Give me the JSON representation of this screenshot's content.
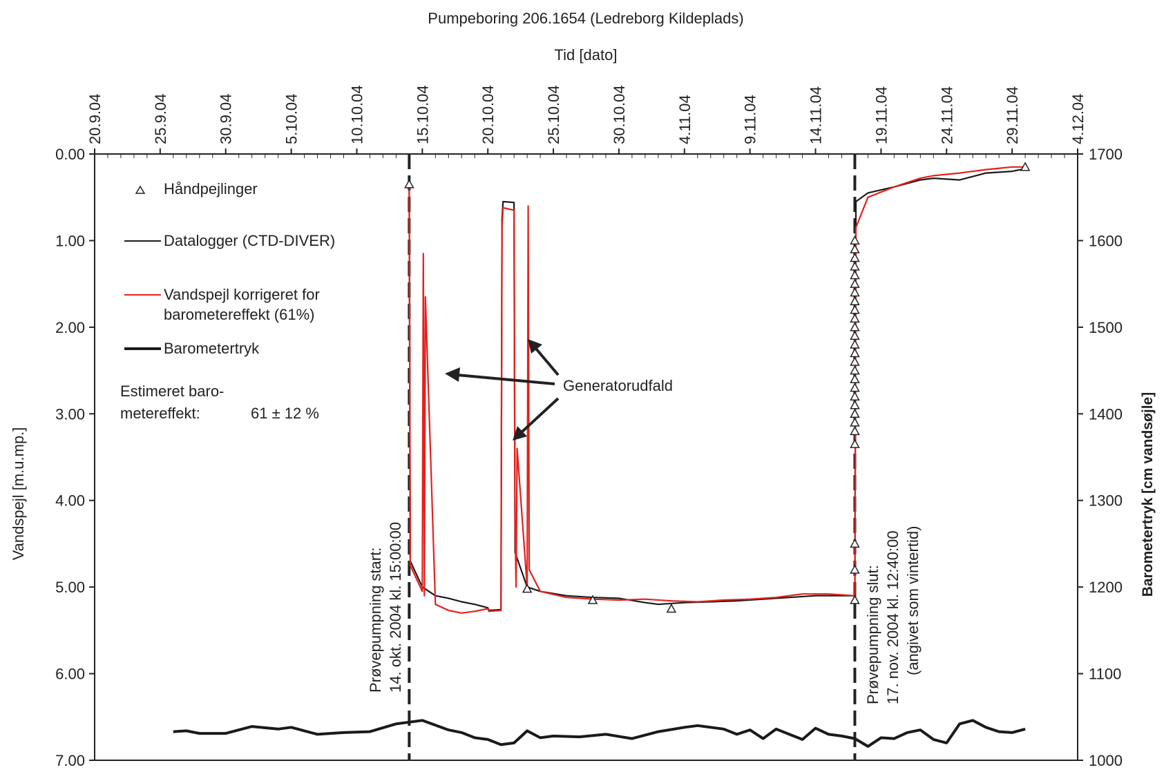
{
  "chart_data": {
    "type": "line",
    "title": "Pumpeboring 206.1654 (Ledreborg Kildeplads)",
    "x_axis": {
      "label": "Tid [dato]",
      "position": "top",
      "tick_labels": [
        "20.9.04",
        "25.9.04",
        "30.9.04",
        "5.10.04",
        "10.10.04",
        "15.10.04",
        "20.10.04",
        "25.10.04",
        "30.10.04",
        "4.11.04",
        "9.11.04",
        "14.11.04",
        "19.11.04",
        "24.11.04",
        "29.11.04",
        "4.12.04"
      ],
      "range": [
        "2004-09-20",
        "2004-12-04"
      ]
    },
    "y_axis_left": {
      "label": "Vandspejl [m.u.mp.]",
      "tick_labels": [
        "0.00",
        "1.00",
        "2.00",
        "3.00",
        "4.00",
        "5.00",
        "6.00",
        "7.00"
      ],
      "range": [
        0,
        7
      ],
      "inverted": true
    },
    "y_axis_right": {
      "label": "Barometertryk [cm vandsøjle]",
      "tick_labels": [
        "1700",
        "1600",
        "1500",
        "1400",
        "1300",
        "1200",
        "1100",
        "1000"
      ],
      "range": [
        1000,
        1700
      ]
    },
    "legend": [
      {
        "label": "Håndpejlinger",
        "marker": "triangle"
      },
      {
        "label": "Datalogger (CTD-DIVER)",
        "line": "thin-black"
      },
      {
        "label_lines": [
          "Vandspejl korrigeret for",
          "barometereffekt (61%)"
        ],
        "line": "thin-red"
      },
      {
        "label": "Barometertryk",
        "line": "thick-black"
      }
    ],
    "annotations": {
      "estimate_label_1": "Estimeret baro-",
      "estimate_label_2": "metereffekt:",
      "estimate_value": "61 ± 12 %",
      "generator_label": "Generatorudfald",
      "start_line_1": "Prøvepumpning start:",
      "start_line_2": "14. okt. 2004 kl. 15:00:00",
      "stop_line_1": "Prøvepumpning slut:",
      "stop_line_2": "17. nov. 2004 kl. 12:40:00",
      "stop_line_3": "(angivet som vintertid)"
    },
    "events": {
      "pump_start": "2004-10-14",
      "pump_stop": "2004-11-17"
    },
    "series": [
      {
        "name": "Datalogger (CTD-DIVER)",
        "axis": "left",
        "color": "#1a1a1a",
        "points": [
          [
            "2004-10-14",
            0.38
          ],
          [
            "2004-10-14",
            4.7
          ],
          [
            "2004-10-15",
            5.0
          ],
          [
            "2004-10-16",
            5.1
          ],
          [
            "2004-10-17",
            5.13
          ],
          [
            "2004-10-18",
            5.17
          ],
          [
            "2004-10-19",
            5.2
          ],
          [
            "2004-10-20",
            5.24
          ],
          [
            "2004-10-20",
            5.27
          ],
          [
            "2004-10-21",
            5.26
          ],
          [
            "2004-10-21",
            0.75
          ],
          [
            "2004-10-21",
            0.55
          ],
          [
            "2004-10-22",
            0.56
          ],
          [
            "2004-10-22",
            4.6
          ],
          [
            "2004-10-23",
            5.0
          ],
          [
            "2004-10-24",
            5.05
          ],
          [
            "2004-10-26",
            5.1
          ],
          [
            "2004-10-28",
            5.12
          ],
          [
            "2004-10-30",
            5.13
          ],
          [
            "2004-11-01",
            5.18
          ],
          [
            "2004-11-02",
            5.2
          ],
          [
            "2004-11-04",
            5.18
          ],
          [
            "2004-11-06",
            5.17
          ],
          [
            "2004-11-08",
            5.16
          ],
          [
            "2004-11-10",
            5.14
          ],
          [
            "2004-11-12",
            5.12
          ],
          [
            "2004-11-14",
            5.1
          ],
          [
            "2004-11-16",
            5.1
          ],
          [
            "2004-11-17",
            5.1
          ],
          [
            "2004-11-17",
            0.55
          ],
          [
            "2004-11-18",
            0.45
          ],
          [
            "2004-11-20",
            0.38
          ],
          [
            "2004-11-22",
            0.3
          ],
          [
            "2004-11-23",
            0.28
          ],
          [
            "2004-11-25",
            0.3
          ],
          [
            "2004-11-27",
            0.22
          ],
          [
            "2004-11-29",
            0.2
          ],
          [
            "2004-11-30",
            0.17
          ]
        ]
      },
      {
        "name": "Vandspejl korrigeret for barometereffekt (61%)",
        "axis": "left",
        "color": "#e4201c",
        "points": [
          [
            "2004-10-14",
            0.4
          ],
          [
            "2004-10-14",
            4.75
          ],
          [
            "2004-10-15",
            5.05
          ],
          [
            "2004-10-15",
            1.15
          ],
          [
            "2004-10-15",
            5.1
          ],
          [
            "2004-10-15",
            1.65
          ],
          [
            "2004-10-16",
            5.2
          ],
          [
            "2004-10-17",
            5.27
          ],
          [
            "2004-10-18",
            5.3
          ],
          [
            "2004-10-19",
            5.28
          ],
          [
            "2004-10-20",
            5.25
          ],
          [
            "2004-10-20",
            5.28
          ],
          [
            "2004-10-21",
            5.27
          ],
          [
            "2004-10-21",
            0.85
          ],
          [
            "2004-10-21",
            0.62
          ],
          [
            "2004-10-22",
            0.65
          ],
          [
            "2004-10-22",
            4.3
          ],
          [
            "2004-10-22",
            5.0
          ],
          [
            "2004-10-22",
            3.4
          ],
          [
            "2004-10-23",
            5.0
          ],
          [
            "2004-10-23",
            0.6
          ],
          [
            "2004-10-23",
            4.8
          ],
          [
            "2004-10-24",
            5.05
          ],
          [
            "2004-10-26",
            5.12
          ],
          [
            "2004-10-28",
            5.14
          ],
          [
            "2004-10-30",
            5.15
          ],
          [
            "2004-11-01",
            5.14
          ],
          [
            "2004-11-03",
            5.16
          ],
          [
            "2004-11-05",
            5.17
          ],
          [
            "2004-11-07",
            5.15
          ],
          [
            "2004-11-09",
            5.14
          ],
          [
            "2004-11-11",
            5.12
          ],
          [
            "2004-11-13",
            5.08
          ],
          [
            "2004-11-15",
            5.08
          ],
          [
            "2004-11-17",
            5.1
          ],
          [
            "2004-11-17",
            0.85
          ],
          [
            "2004-11-18",
            0.5
          ],
          [
            "2004-11-20",
            0.38
          ],
          [
            "2004-11-22",
            0.28
          ],
          [
            "2004-11-23",
            0.25
          ],
          [
            "2004-11-25",
            0.22
          ],
          [
            "2004-11-27",
            0.18
          ],
          [
            "2004-11-29",
            0.15
          ],
          [
            "2004-11-30",
            0.15
          ]
        ]
      },
      {
        "name": "Barometertryk",
        "axis": "right",
        "color": "#1a1a1a",
        "points": [
          [
            "2004-09-26",
            1033
          ],
          [
            "2004-09-27",
            1034
          ],
          [
            "2004-09-28",
            1031
          ],
          [
            "2004-09-30",
            1031
          ],
          [
            "2004-10-02",
            1039
          ],
          [
            "2004-10-04",
            1036
          ],
          [
            "2004-10-05",
            1038
          ],
          [
            "2004-10-07",
            1030
          ],
          [
            "2004-10-09",
            1032
          ],
          [
            "2004-10-11",
            1033
          ],
          [
            "2004-10-13",
            1042
          ],
          [
            "2004-10-15",
            1046
          ],
          [
            "2004-10-17",
            1035
          ],
          [
            "2004-10-18",
            1032
          ],
          [
            "2004-10-19",
            1026
          ],
          [
            "2004-10-20",
            1024
          ],
          [
            "2004-10-21",
            1018
          ],
          [
            "2004-10-22",
            1020
          ],
          [
            "2004-10-23",
            1034
          ],
          [
            "2004-10-24",
            1026
          ],
          [
            "2004-10-25",
            1028
          ],
          [
            "2004-10-27",
            1027
          ],
          [
            "2004-10-29",
            1030
          ],
          [
            "2004-10-31",
            1025
          ],
          [
            "2004-11-02",
            1033
          ],
          [
            "2004-11-04",
            1038
          ],
          [
            "2004-11-05",
            1040
          ],
          [
            "2004-11-07",
            1036
          ],
          [
            "2004-11-08",
            1030
          ],
          [
            "2004-11-09",
            1035
          ],
          [
            "2004-11-10",
            1025
          ],
          [
            "2004-11-11",
            1036
          ],
          [
            "2004-11-12",
            1030
          ],
          [
            "2004-11-13",
            1024
          ],
          [
            "2004-11-14",
            1037
          ],
          [
            "2004-11-15",
            1030
          ],
          [
            "2004-11-16",
            1028
          ],
          [
            "2004-11-17",
            1025
          ],
          [
            "2004-11-18",
            1016
          ],
          [
            "2004-11-19",
            1026
          ],
          [
            "2004-11-20",
            1025
          ],
          [
            "2004-11-21",
            1032
          ],
          [
            "2004-11-22",
            1035
          ],
          [
            "2004-11-23",
            1024
          ],
          [
            "2004-11-24",
            1020
          ],
          [
            "2004-11-25",
            1042
          ],
          [
            "2004-11-26",
            1046
          ],
          [
            "2004-11-27",
            1038
          ],
          [
            "2004-11-28",
            1033
          ],
          [
            "2004-11-29",
            1032
          ],
          [
            "2004-11-30",
            1036
          ]
        ]
      }
    ],
    "manual_measurements": [
      [
        "2004-10-14",
        0.35
      ],
      [
        "2004-10-23",
        5.02
      ],
      [
        "2004-10-28",
        5.15
      ],
      [
        "2004-11-03",
        5.25
      ],
      [
        "2004-11-17",
        1.0
      ],
      [
        "2004-11-17",
        1.1
      ],
      [
        "2004-11-17",
        1.2
      ],
      [
        "2004-11-17",
        1.3
      ],
      [
        "2004-11-17",
        1.4
      ],
      [
        "2004-11-17",
        1.5
      ],
      [
        "2004-11-17",
        1.6
      ],
      [
        "2004-11-17",
        1.7
      ],
      [
        "2004-11-17",
        1.8
      ],
      [
        "2004-11-17",
        1.9
      ],
      [
        "2004-11-17",
        2.0
      ],
      [
        "2004-11-17",
        2.1
      ],
      [
        "2004-11-17",
        2.2
      ],
      [
        "2004-11-17",
        2.3
      ],
      [
        "2004-11-17",
        2.4
      ],
      [
        "2004-11-17",
        2.5
      ],
      [
        "2004-11-17",
        2.6
      ],
      [
        "2004-11-17",
        2.7
      ],
      [
        "2004-11-17",
        2.8
      ],
      [
        "2004-11-17",
        2.9
      ],
      [
        "2004-11-17",
        3.0
      ],
      [
        "2004-11-17",
        3.1
      ],
      [
        "2004-11-17",
        3.2
      ],
      [
        "2004-11-17",
        3.35
      ],
      [
        "2004-11-17",
        4.5
      ],
      [
        "2004-11-17",
        4.8
      ],
      [
        "2004-11-17",
        5.15
      ],
      [
        "2004-11-30",
        0.15
      ]
    ]
  }
}
